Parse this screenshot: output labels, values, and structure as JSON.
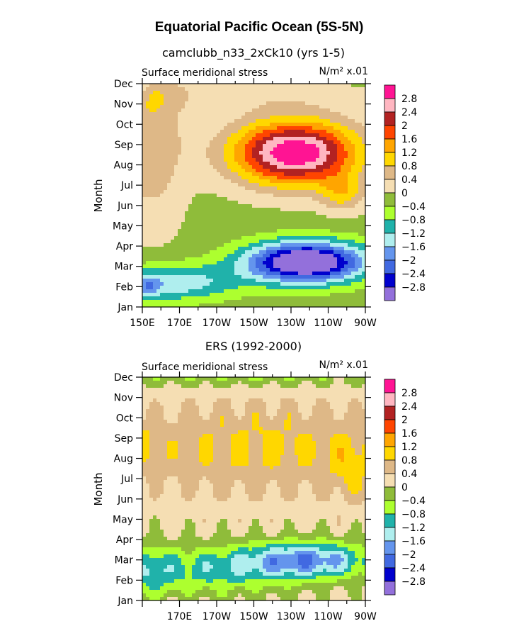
{
  "figure_title": "Equatorial Pacific Ocean (5S-5N)",
  "chart_data": [
    {
      "type": "heatmap",
      "title": "camclubb_n33_2xCk10 (yrs 1-5)",
      "subtitle_left": "Surface meridional stress",
      "units": "N/m² x.01",
      "ylabel": "Month",
      "xlabel": "",
      "x_ticks": [
        "150E",
        "170E",
        "170W",
        "150W",
        "130W",
        "110W",
        "90W"
      ],
      "x_tick_lon": [
        150,
        170,
        190,
        210,
        230,
        250,
        270
      ],
      "xlim": [
        150,
        270
      ],
      "y_ticks": [
        "Jan",
        "Feb",
        "Mar",
        "Apr",
        "May",
        "Jun",
        "Jul",
        "Aug",
        "Sep",
        "Oct",
        "Nov",
        "Dec"
      ],
      "ylim": [
        0,
        11
      ],
      "contour_levels": [
        -2.8,
        -2.4,
        -2,
        -1.6,
        -1.2,
        -0.8,
        -0.4,
        0,
        0.4,
        0.8,
        1.2,
        1.6,
        2,
        2.4,
        2.8
      ],
      "field_max": 2.5,
      "field_min": -2.9
    },
    {
      "type": "heatmap",
      "title": "ERS (1992-2000)",
      "subtitle_left": "Surface meridional stress",
      "units": "N/m² x.01",
      "ylabel": "Month",
      "xlabel": "",
      "x_ticks": [
        "170E",
        "170W",
        "150W",
        "130W",
        "110W",
        "90W"
      ],
      "x_tick_lon": [
        170,
        190,
        210,
        230,
        250,
        270
      ],
      "xlim": [
        150,
        270
      ],
      "y_ticks": [
        "Jan",
        "Feb",
        "Mar",
        "Apr",
        "May",
        "Jun",
        "Jul",
        "Aug",
        "Sep",
        "Oct",
        "Nov",
        "Dec"
      ],
      "ylim": [
        0,
        11
      ],
      "contour_levels": [
        -2.8,
        -2.4,
        -2,
        -1.6,
        -1.2,
        -0.8,
        -0.4,
        0,
        0.4,
        0.8,
        1.2,
        1.6,
        2,
        2.4,
        2.8
      ],
      "field_max": 1.4,
      "field_min": -2.1
    }
  ],
  "colorbar": {
    "labels": [
      "2.8",
      "2.4",
      "2",
      "1.6",
      "1.2",
      "0.8",
      "0.4",
      "0",
      "-0.4",
      "-0.8",
      "-1.2",
      "-1.6",
      "-2",
      "-2.4",
      "-2.8"
    ],
    "colors": [
      "#ff1493",
      "#ffb6c1",
      "#b22222",
      "#ff4500",
      "#ffa500",
      "#ffd700",
      "#deb887",
      "#f5deb3",
      "#8fbc3a",
      "#adff2f",
      "#20b2aa",
      "#afeeee",
      "#6495ed",
      "#4169e1",
      "#0000cd",
      "#9370db"
    ]
  }
}
